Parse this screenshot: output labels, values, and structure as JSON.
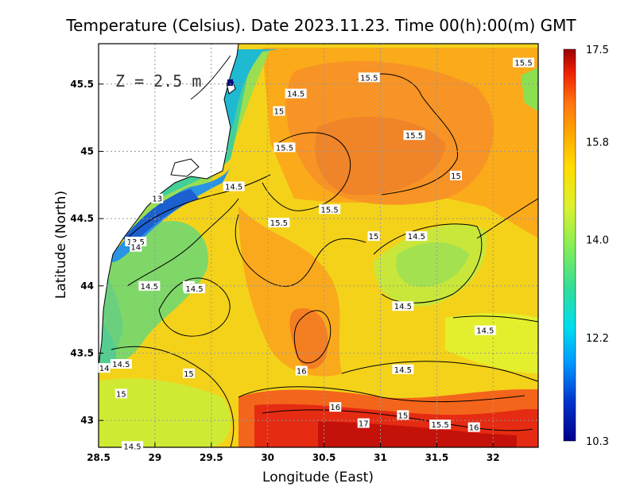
{
  "chart_data": {
    "type": "heatmap",
    "title": "Temperature (Celsius). Date 2023.11.23. Time 00(h):00(m) GMT",
    "xlabel": "Longitude (East)",
    "ylabel": "Latitude (North)",
    "annotation": "Z = 2.5 m",
    "xlim": [
      28.5,
      32.4
    ],
    "ylim": [
      42.8,
      45.8
    ],
    "x_ticks": [
      {
        "value": 28.5,
        "label": "28.5"
      },
      {
        "value": 29,
        "label": "29"
      },
      {
        "value": 29.5,
        "label": "29.5"
      },
      {
        "value": 30,
        "label": "30"
      },
      {
        "value": 30.5,
        "label": "30.5"
      },
      {
        "value": 31,
        "label": "31"
      },
      {
        "value": 31.5,
        "label": "31.5"
      },
      {
        "value": 32,
        "label": "32"
      }
    ],
    "y_ticks": [
      {
        "value": 43,
        "label": "43"
      },
      {
        "value": 43.5,
        "label": "43.5"
      },
      {
        "value": 44,
        "label": "44"
      },
      {
        "value": 44.5,
        "label": "44.5"
      },
      {
        "value": 45,
        "label": "45"
      },
      {
        "value": 45.5,
        "label": "45.5"
      }
    ],
    "grid": true,
    "colorbar": {
      "min": 10.3,
      "max": 17.5,
      "ticks": [
        {
          "value": 17.5,
          "label": "17.5"
        },
        {
          "value": 15.8,
          "label": "15.8"
        },
        {
          "value": 14.0,
          "label": "14.0"
        },
        {
          "value": 12.2,
          "label": "12.2"
        },
        {
          "value": 10.3,
          "label": "10.3"
        }
      ],
      "colors": [
        "#00008b",
        "#0033cc",
        "#0099ff",
        "#00ddee",
        "#33dd99",
        "#88ee55",
        "#ddf030",
        "#ffdd00",
        "#ffaa00",
        "#ff7711",
        "#ee2200",
        "#990000"
      ]
    },
    "contour_labels": [
      {
        "lon": 32.27,
        "lat": 45.66,
        "label": "15.5"
      },
      {
        "lon": 30.9,
        "lat": 45.55,
        "label": "15.5"
      },
      {
        "lon": 30.25,
        "lat": 45.43,
        "label": "14.5"
      },
      {
        "lon": 30.1,
        "lat": 45.3,
        "label": "15"
      },
      {
        "lon": 31.3,
        "lat": 45.12,
        "label": "15.5"
      },
      {
        "lon": 30.15,
        "lat": 45.03,
        "label": "15.5"
      },
      {
        "lon": 31.67,
        "lat": 44.82,
        "label": "15"
      },
      {
        "lon": 29.7,
        "lat": 44.74,
        "label": "14.5"
      },
      {
        "lon": 29.02,
        "lat": 44.65,
        "label": "13"
      },
      {
        "lon": 30.55,
        "lat": 44.57,
        "label": "15.5"
      },
      {
        "lon": 30.1,
        "lat": 44.47,
        "label": "15.5"
      },
      {
        "lon": 30.94,
        "lat": 44.37,
        "label": "15"
      },
      {
        "lon": 31.32,
        "lat": 44.37,
        "label": "14.5"
      },
      {
        "lon": 28.83,
        "lat": 44.33,
        "label": "13.5"
      },
      {
        "lon": 28.83,
        "lat": 44.29,
        "label": "14"
      },
      {
        "lon": 28.95,
        "lat": 44.0,
        "label": "14.5"
      },
      {
        "lon": 29.3,
        "lat": 44.0,
        "label": "15"
      },
      {
        "lon": 29.35,
        "lat": 43.98,
        "label": "14.5"
      },
      {
        "lon": 31.2,
        "lat": 43.85,
        "label": "14.5"
      },
      {
        "lon": 31.93,
        "lat": 43.67,
        "label": "14.5"
      },
      {
        "lon": 28.7,
        "lat": 43.42,
        "label": "14.5"
      },
      {
        "lon": 28.55,
        "lat": 43.39,
        "label": "14"
      },
      {
        "lon": 30.3,
        "lat": 43.37,
        "label": "16"
      },
      {
        "lon": 31.2,
        "lat": 43.38,
        "label": "14.5"
      },
      {
        "lon": 29.3,
        "lat": 43.35,
        "label": "15"
      },
      {
        "lon": 28.7,
        "lat": 43.2,
        "label": "15"
      },
      {
        "lon": 30.6,
        "lat": 43.1,
        "label": "16"
      },
      {
        "lon": 31.2,
        "lat": 43.04,
        "label": "15"
      },
      {
        "lon": 31.53,
        "lat": 42.97,
        "label": "15.5"
      },
      {
        "lon": 31.83,
        "lat": 42.95,
        "label": "16"
      },
      {
        "lon": 30.85,
        "lat": 42.98,
        "label": "17"
      },
      {
        "lon": 28.8,
        "lat": 42.81,
        "label": "14.5"
      }
    ]
  }
}
